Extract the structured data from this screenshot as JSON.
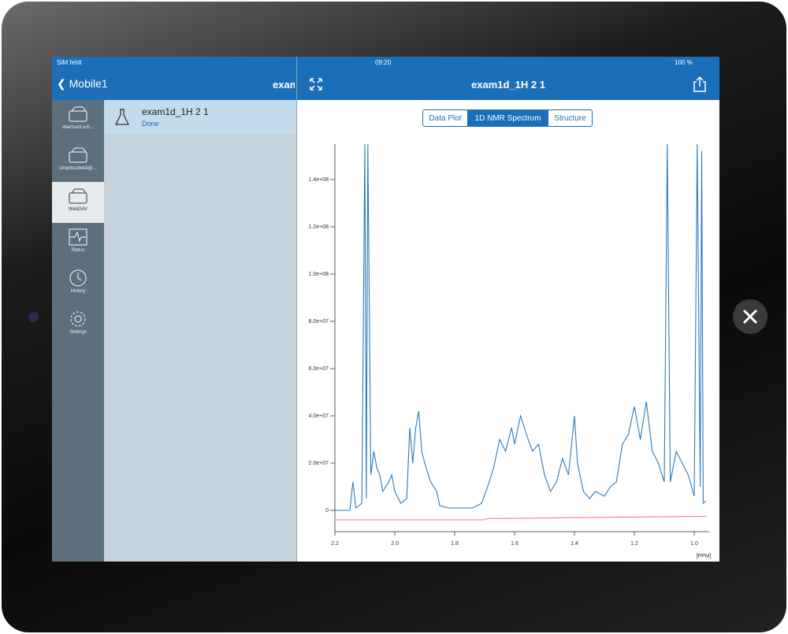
{
  "status_bar": {
    "carrier": "SIM fehlt",
    "time": "09:20",
    "battery": "100 %"
  },
  "nav": {
    "back": "Mobile1",
    "list_title": "exam",
    "detail_title": "exam1d_1H 2 1"
  },
  "sidebar": {
    "items": [
      "eberhard.sch...",
      "stroplocalweb@...",
      "WebDAV",
      "Status",
      "History",
      "Settings"
    ]
  },
  "list": {
    "items": [
      {
        "title": "exam1d_1H 2 1",
        "status": "Done"
      }
    ]
  },
  "segments": [
    "Data Plot",
    "1D NMR Spectrum",
    "Structure"
  ],
  "chart_data": {
    "type": "line",
    "x_label": "[PPM]",
    "x": [
      2.2,
      2.15,
      2.14,
      2.13,
      2.11,
      2.1,
      2.095,
      2.09,
      2.08,
      2.07,
      2.06,
      2.05,
      2.04,
      2.02,
      2.01,
      2.0,
      1.98,
      1.96,
      1.95,
      1.94,
      1.93,
      1.92,
      1.91,
      1.9,
      1.88,
      1.86,
      1.85,
      1.82,
      1.78,
      1.74,
      1.71,
      1.69,
      1.67,
      1.65,
      1.63,
      1.61,
      1.6,
      1.58,
      1.56,
      1.54,
      1.52,
      1.5,
      1.48,
      1.46,
      1.44,
      1.42,
      1.4,
      1.39,
      1.37,
      1.35,
      1.33,
      1.3,
      1.28,
      1.26,
      1.24,
      1.22,
      1.2,
      1.18,
      1.16,
      1.14,
      1.12,
      1.1,
      1.09,
      1.08,
      1.06,
      1.04,
      1.02,
      1.0,
      0.99,
      0.98,
      0.975,
      0.97,
      0.96
    ],
    "series": [
      {
        "color": "#2b7bbd",
        "values": [
          0,
          0,
          12000000,
          1000000,
          3000000,
          155000000,
          5000000,
          155000000,
          15000000,
          25000000,
          18000000,
          15000000,
          8000000,
          12000000,
          15000000,
          8000000,
          3000000,
          5000000,
          35000000,
          20000000,
          35000000,
          42000000,
          25000000,
          20000000,
          12000000,
          8000000,
          2000000,
          1000000,
          1000000,
          1000000,
          3000000,
          10000000,
          18000000,
          30000000,
          25000000,
          35000000,
          28000000,
          40000000,
          32000000,
          25000000,
          28000000,
          15000000,
          8000000,
          12000000,
          22000000,
          15000000,
          40000000,
          20000000,
          8000000,
          5000000,
          8000000,
          6000000,
          10000000,
          12000000,
          28000000,
          32000000,
          44000000,
          30000000,
          46000000,
          25000000,
          20000000,
          12000000,
          155000000,
          12000000,
          25000000,
          20000000,
          15000000,
          6000000,
          155000000,
          10000000,
          152000000,
          3000000,
          4000000
        ]
      },
      {
        "color": "#e8837f",
        "x": [
          2.2,
          1.7,
          1.69,
          0.96
        ],
        "values": [
          -4000000,
          -4000000,
          -3500000,
          -2500000
        ]
      }
    ],
    "xlim": [
      2.2,
      0.95
    ],
    "xticks": [
      2.2,
      {
        "value": 2,
        "label": "2.0"
      },
      1.8,
      1.6,
      1.4,
      1.2,
      {
        "value": 1,
        "label": "1.0"
      }
    ],
    "ylim": [
      -9000000,
      155000000
    ],
    "yticks": [
      0,
      {
        "value": 20000000,
        "label": "2.0e+07"
      },
      {
        "value": 40000000,
        "label": "4.0e+07"
      },
      {
        "value": 60000000,
        "label": "6.0e+07"
      },
      {
        "value": 80000000,
        "label": "8.0e+07"
      },
      {
        "value": 100000000,
        "label": "1.0e+08"
      },
      {
        "value": 120000000,
        "label": "1.2e+08"
      },
      {
        "value": 140000000,
        "label": "1.4e+08"
      }
    ]
  }
}
